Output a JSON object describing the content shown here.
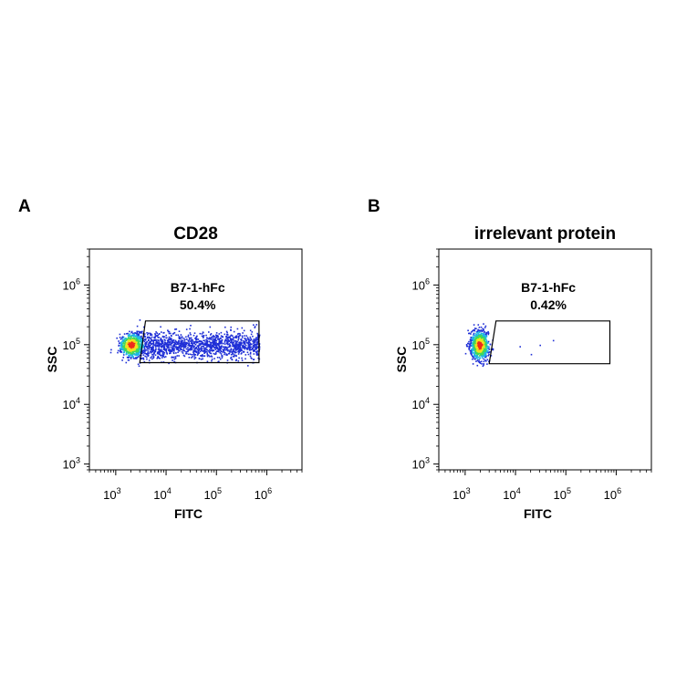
{
  "chart_data": [
    {
      "type": "scatter",
      "panel_label": "A",
      "title": "CD28",
      "xlabel": "FITC",
      "ylabel": "SSC",
      "xscale": "log",
      "yscale": "log",
      "xlim": [
        300,
        5000000
      ],
      "ylim": [
        800,
        4000000
      ],
      "xticks": [
        {
          "value": 1000,
          "base": "10",
          "exp": "3"
        },
        {
          "value": 10000,
          "base": "10",
          "exp": "4"
        },
        {
          "value": 100000,
          "base": "10",
          "exp": "5"
        },
        {
          "value": 1000000,
          "base": "10",
          "exp": "6"
        }
      ],
      "yticks": [
        {
          "value": 1000,
          "base": "10",
          "exp": "3"
        },
        {
          "value": 10000,
          "base": "10",
          "exp": "4"
        },
        {
          "value": 100000,
          "base": "10",
          "exp": "5"
        },
        {
          "value": 1000000,
          "base": "10",
          "exp": "6"
        }
      ],
      "gate": {
        "name": "B7-1-hFc",
        "percent": "50.4%",
        "vertices": [
          [
            3900,
            250000
          ],
          [
            700000,
            250000
          ],
          [
            700000,
            50000
          ],
          [
            3000,
            50000
          ]
        ]
      },
      "populations": [
        {
          "n": 650,
          "x_center": 2000,
          "y_center": 100000,
          "x_spread": 0.12,
          "y_spread": 0.1,
          "dense": true
        },
        {
          "n": 1500,
          "x_min": 2500,
          "x_max": 700000,
          "y_center": 100000,
          "y_spread": 0.11,
          "dense": false
        }
      ]
    },
    {
      "type": "scatter",
      "panel_label": "B",
      "title": "irrelevant protein",
      "xlabel": "FITC",
      "ylabel": "SSC",
      "xscale": "log",
      "yscale": "log",
      "xlim": [
        300,
        5000000
      ],
      "ylim": [
        800,
        4000000
      ],
      "xticks": [
        {
          "value": 1000,
          "base": "10",
          "exp": "3"
        },
        {
          "value": 10000,
          "base": "10",
          "exp": "4"
        },
        {
          "value": 100000,
          "base": "10",
          "exp": "5"
        },
        {
          "value": 1000000,
          "base": "10",
          "exp": "6"
        }
      ],
      "yticks": [
        {
          "value": 1000,
          "base": "10",
          "exp": "3"
        },
        {
          "value": 10000,
          "base": "10",
          "exp": "4"
        },
        {
          "value": 100000,
          "base": "10",
          "exp": "5"
        },
        {
          "value": 1000000,
          "base": "10",
          "exp": "6"
        }
      ],
      "gate": {
        "name": "B7-1-hFc",
        "percent": "0.42%",
        "vertices": [
          [
            4100,
            250000
          ],
          [
            750000,
            250000
          ],
          [
            750000,
            48000
          ],
          [
            3000,
            48000
          ]
        ]
      },
      "populations": [
        {
          "n": 800,
          "x_center": 1900,
          "y_center": 100000,
          "x_spread": 0.09,
          "y_spread": 0.12,
          "dense": true
        }
      ],
      "outliers": [
        [
          12000,
          95000
        ],
        [
          30000,
          100000
        ],
        [
          55000,
          120000
        ],
        [
          20000,
          70000
        ]
      ]
    }
  ],
  "colors": {
    "low_density": "#1f2fd6",
    "mid_low": "#1fb4e6",
    "mid": "#3fd85a",
    "mid_high": "#f2e21c",
    "high_density": "#ee2a1c",
    "axes": "#000000"
  }
}
